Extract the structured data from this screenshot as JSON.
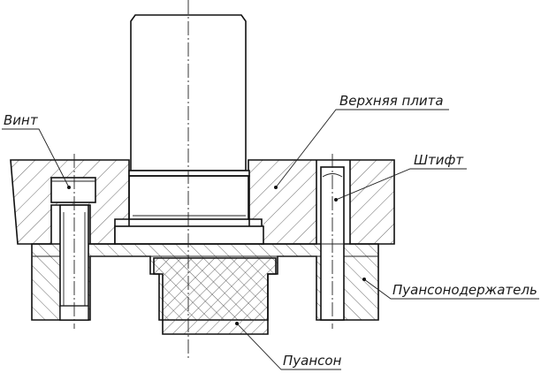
{
  "labels": {
    "screw": "Винт",
    "upper_plate": "Верхняя плита",
    "pin": "Штифт",
    "punch_holder": "Пуансонодержатель",
    "punch": "Пуансон"
  }
}
